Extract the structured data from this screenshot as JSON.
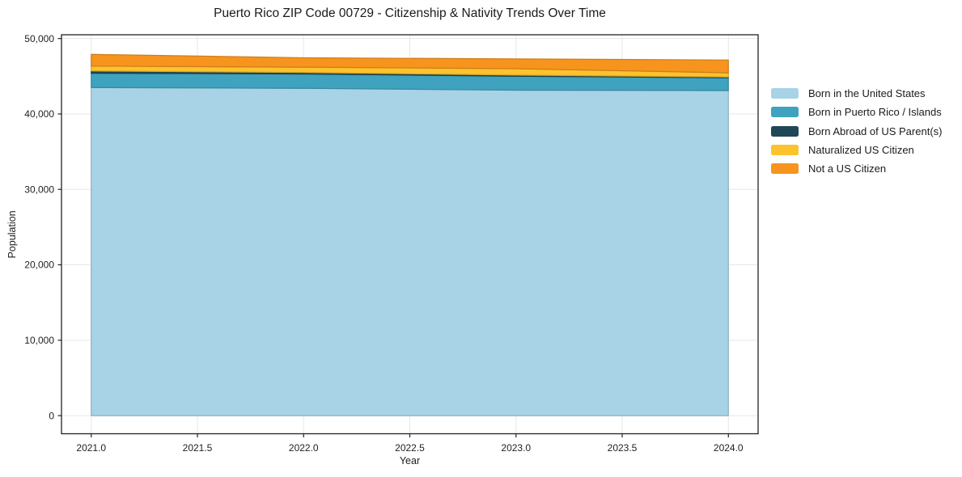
{
  "figure": {
    "title": "Puerto Rico ZIP Code 00729 - Citizenship & Nativity Trends Over Time",
    "xlabel": "Year",
    "ylabel": "Population"
  },
  "axes": {
    "x_ticks": [
      {
        "value": 2021.0,
        "label": "2021.0"
      },
      {
        "value": 2021.5,
        "label": "2021.5"
      },
      {
        "value": 2022.0,
        "label": "2022.0"
      },
      {
        "value": 2022.5,
        "label": "2022.5"
      },
      {
        "value": 2023.0,
        "label": "2023.0"
      },
      {
        "value": 2023.5,
        "label": "2023.5"
      },
      {
        "value": 2024.0,
        "label": "2024.0"
      }
    ],
    "y_ticks": [
      {
        "value": 0,
        "label": "0"
      },
      {
        "value": 10000,
        "label": "10,000"
      },
      {
        "value": 20000,
        "label": "20,000"
      },
      {
        "value": 30000,
        "label": "30,000"
      },
      {
        "value": 40000,
        "label": "40,000"
      },
      {
        "value": 50000,
        "label": "50,000"
      }
    ]
  },
  "style": {
    "grid_color": "#e7e7e7",
    "spine_color": "#222222",
    "tick_color": "#222222"
  },
  "chart_data": {
    "type": "area",
    "stacked": true,
    "title": "Puerto Rico ZIP Code 00729 - Citizenship & Nativity Trends Over Time",
    "xlabel": "Year",
    "ylabel": "Population",
    "x": [
      2021,
      2022,
      2023,
      2024
    ],
    "series": [
      {
        "name": "Born in the United States",
        "color": "#a8d3e6",
        "values": [
          43500,
          43400,
          43150,
          43100
        ]
      },
      {
        "name": "Born in Puerto Rico / Islands",
        "color": "#3fa2be",
        "values": [
          1900,
          1900,
          1850,
          1700
        ]
      },
      {
        "name": "Born Abroad of US Parent(s)",
        "color": "#1f4757",
        "values": [
          300,
          200,
          150,
          100
        ]
      },
      {
        "name": "Naturalized US Citizen",
        "color": "#fcc32d",
        "values": [
          650,
          700,
          850,
          550
        ]
      },
      {
        "name": "Not a US Citizen",
        "color": "#f6941e",
        "values": [
          1550,
          1250,
          1300,
          1700
        ]
      }
    ],
    "stack_totals": [
      47900,
      47450,
      47300,
      47150
    ],
    "xlim": [
      2020.86,
      2024.14
    ],
    "ylim": [
      -2400,
      50500
    ],
    "grid": true,
    "legend_position": "right"
  }
}
